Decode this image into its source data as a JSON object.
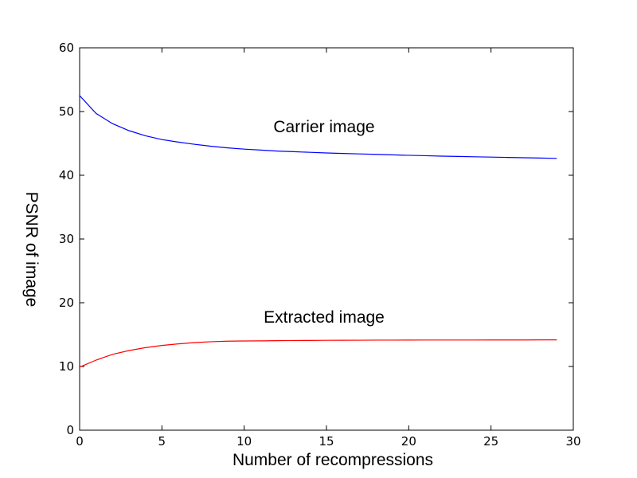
{
  "chart_data": {
    "type": "line",
    "xlabel": "Number of recompressions",
    "ylabel": "PSNR of image",
    "xlim": [
      0,
      30
    ],
    "ylim": [
      0,
      60
    ],
    "xticks": [
      0,
      5,
      10,
      15,
      20,
      25,
      30
    ],
    "yticks": [
      0,
      10,
      20,
      30,
      40,
      50,
      60
    ],
    "grid": false,
    "annotations": [
      {
        "text": "Carrier image",
        "x": 15,
        "y": 47.5
      },
      {
        "text": "Extracted image",
        "x": 14.5,
        "y": 17.5
      }
    ],
    "x": [
      0,
      1,
      2,
      3,
      4,
      5,
      6,
      7,
      8,
      9,
      10,
      11,
      12,
      13,
      14,
      15,
      16,
      17,
      18,
      19,
      20,
      21,
      22,
      23,
      24,
      25,
      26,
      27,
      28,
      29
    ],
    "series": [
      {
        "color": "#0000ff",
        "values": [
          52.5,
          49.7,
          48.1,
          47.0,
          46.2,
          45.6,
          45.2,
          44.85,
          44.55,
          44.3,
          44.1,
          43.95,
          43.8,
          43.7,
          43.6,
          43.5,
          43.42,
          43.35,
          43.28,
          43.2,
          43.13,
          43.07,
          43.0,
          42.95,
          42.9,
          42.85,
          42.8,
          42.75,
          42.7,
          42.65
        ]
      },
      {
        "color": "#ff0000",
        "values": [
          9.9,
          11.0,
          11.9,
          12.5,
          12.95,
          13.3,
          13.55,
          13.75,
          13.88,
          13.97,
          14.0,
          14.02,
          14.05,
          14.07,
          14.08,
          14.1,
          14.11,
          14.12,
          14.13,
          14.13,
          14.14,
          14.15,
          14.15,
          14.15,
          14.15,
          14.16,
          14.16,
          14.16,
          14.17,
          14.17
        ]
      }
    ]
  }
}
